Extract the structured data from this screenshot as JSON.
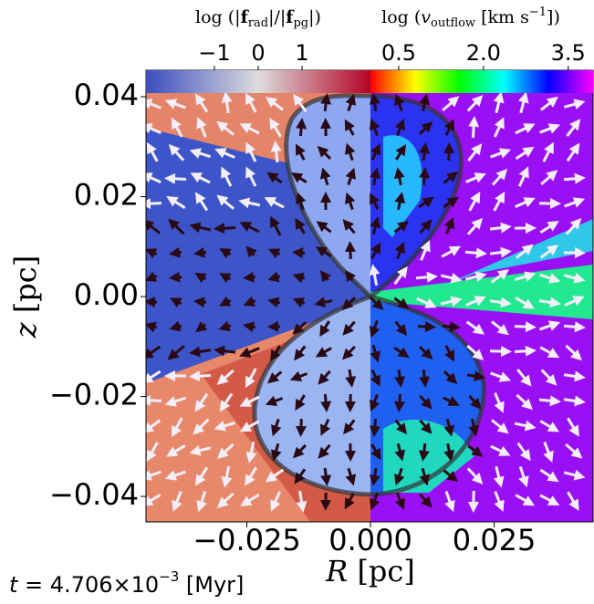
{
  "chart_data": {
    "type": "field-map",
    "xlabel": [
      "R",
      " [pc]"
    ],
    "ylabel": [
      "z",
      " [pc]"
    ],
    "time_label": [
      "t",
      " = 4.706×10",
      "−3",
      " [Myr]"
    ],
    "xlim": [
      -0.0454,
      0.045
    ],
    "ylim": [
      -0.0451,
      0.0453
    ],
    "xticks": [
      {
        "value": -0.025,
        "label": "−0.025"
      },
      {
        "value": 0,
        "label": "0.000"
      },
      0.025
    ],
    "yticks": [
      {
        "value": -0.04,
        "label": "−0.04"
      },
      {
        "value": -0.02,
        "label": "−0.02"
      },
      {
        "value": 0,
        "label": "0.00"
      },
      0.02,
      0.04
    ],
    "colorbars": [
      {
        "label": [
          "log (|",
          "f",
          "rad",
          "|/|",
          "f",
          "pg",
          "|)"
        ],
        "lim": [
          -2.56,
          2.56
        ],
        "ticks": [
          {
            "value": -1,
            "label": "−1"
          },
          0,
          1
        ],
        "colors": [
          "#3b4cc0",
          "#dddddd",
          "#b40426"
        ]
      },
      {
        "label": [
          "log (",
          "v",
          "outflow",
          " [km s",
          "−1",
          "])"
        ],
        "lim": [
          0,
          3.94
        ],
        "ticks": [
          0.5,
          {
            "value": 2,
            "label": "2.0"
          },
          3.5
        ],
        "colors": [
          "#ff0000",
          "#ffff00",
          "#00ff00",
          "#00ffff",
          "#0000ff",
          "#ff00ff"
        ]
      }
    ]
  }
}
